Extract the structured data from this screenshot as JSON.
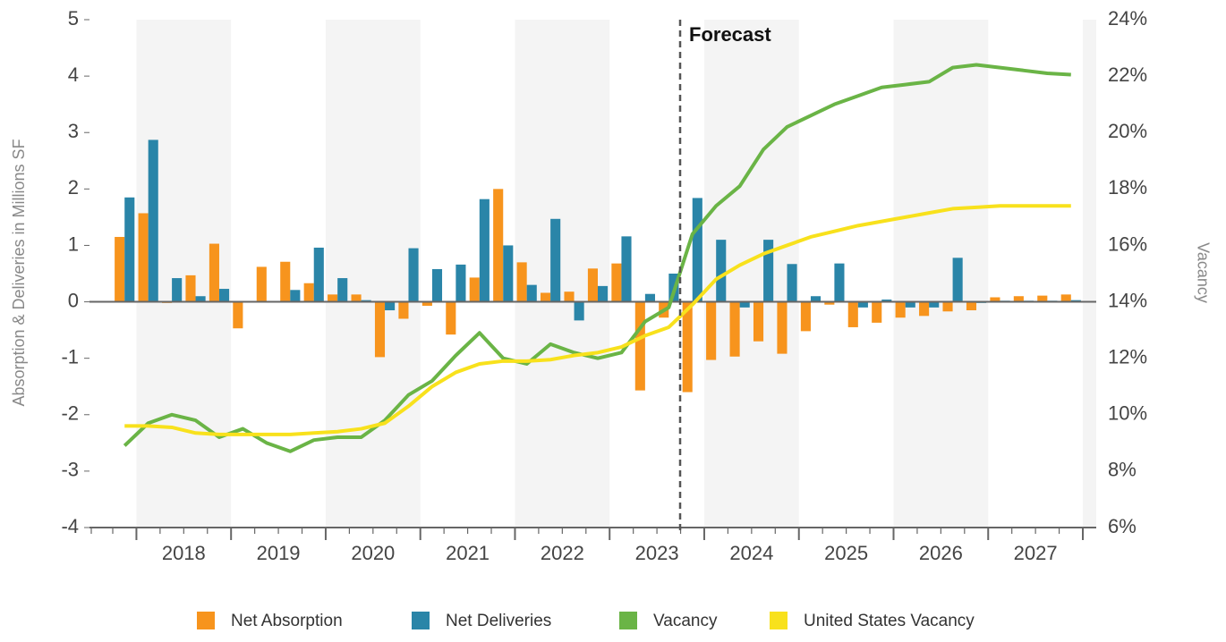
{
  "chart_data": {
    "type": "bar-line",
    "y_label": "Absorption & Deliveries in Millions SF",
    "y2_label": "Vacancy",
    "annotation": "Forecast",
    "groups": [
      "2018",
      "2019",
      "2020",
      "2021",
      "2022",
      "2023",
      "2024",
      "2025",
      "2026",
      "2027"
    ],
    "ylim": [
      -4,
      5
    ],
    "yticks": [
      -4,
      -3,
      -2,
      -1,
      0,
      1,
      2,
      3,
      4,
      5
    ],
    "y2lim": [
      6,
      24
    ],
    "y2ticks": [
      {
        "value": 6,
        "label": "6%"
      },
      {
        "value": 8,
        "label": "8%"
      },
      {
        "value": 10,
        "label": "10%"
      },
      {
        "value": 12,
        "label": "12%"
      },
      {
        "value": 14,
        "label": "14%"
      },
      {
        "value": 16,
        "label": "16%"
      },
      {
        "value": 18,
        "label": "18%"
      },
      {
        "value": 20,
        "label": "20%"
      },
      {
        "value": 22,
        "label": "22%"
      },
      {
        "value": 24,
        "label": "24%"
      }
    ],
    "series": [
      {
        "name": "Net Absorption",
        "type": "bar",
        "color": "#f7941d",
        "values": [
          1.15,
          1.57,
          -0.02,
          0.47,
          1.03,
          -0.47,
          0.62,
          0.71,
          0.33,
          0.13,
          0.13,
          -0.98,
          -0.3,
          -0.07,
          -0.58,
          0.43,
          2.0,
          0.7,
          0.16,
          0.18,
          0.59,
          0.68,
          -1.57,
          -0.28,
          -1.6,
          -1.03,
          -0.97,
          -0.7,
          -0.92,
          -0.52,
          -0.05,
          -0.45,
          -0.37,
          -0.28,
          -0.25,
          -0.17,
          -0.15,
          0.08,
          0.1,
          0.11,
          0.13
        ]
      },
      {
        "name": "Net Deliveries",
        "type": "bar",
        "color": "#2a85a8",
        "values": [
          1.85,
          2.87,
          0.42,
          0.1,
          0.23,
          0,
          0,
          0.21,
          0.96,
          0.42,
          0.03,
          -0.15,
          0.95,
          0.58,
          0.66,
          1.82,
          1.0,
          0.3,
          1.47,
          -0.33,
          0.28,
          1.16,
          0.14,
          0.5,
          1.84,
          1.1,
          -0.1,
          1.1,
          0.67,
          0.1,
          0.68,
          -0.1,
          0.04,
          -0.1,
          -0.1,
          0.78,
          -0.02,
          0.02,
          0.02,
          0.02,
          0.03
        ]
      },
      {
        "name": "Vacancy",
        "type": "line",
        "axis": "y2",
        "color": "#6ab446",
        "values": [
          8.9,
          9.7,
          10.0,
          9.8,
          9.2,
          9.5,
          9.0,
          8.7,
          9.1,
          9.2,
          9.2,
          9.8,
          10.7,
          11.2,
          12.1,
          12.9,
          12.0,
          11.8,
          12.5,
          12.2,
          12.0,
          12.2,
          13.3,
          13.8,
          16.4,
          17.4,
          18.1,
          19.4,
          20.2,
          20.6,
          21.0,
          21.3,
          21.6,
          21.7,
          21.8,
          22.3,
          22.4,
          22.3,
          22.2,
          22.1,
          22.05
        ]
      },
      {
        "name": "United States Vacancy",
        "type": "line",
        "axis": "y2",
        "color": "#f8e11c",
        "values": [
          9.6,
          9.6,
          9.55,
          9.35,
          9.3,
          9.3,
          9.3,
          9.3,
          9.35,
          9.4,
          9.5,
          9.7,
          10.3,
          11.0,
          11.5,
          11.8,
          11.9,
          11.9,
          11.95,
          12.1,
          12.2,
          12.4,
          12.8,
          13.1,
          13.9,
          14.8,
          15.3,
          15.7,
          16.0,
          16.3,
          16.5,
          16.7,
          16.85,
          17.0,
          17.15,
          17.3,
          17.35,
          17.4,
          17.4,
          17.4,
          17.4
        ]
      }
    ]
  }
}
